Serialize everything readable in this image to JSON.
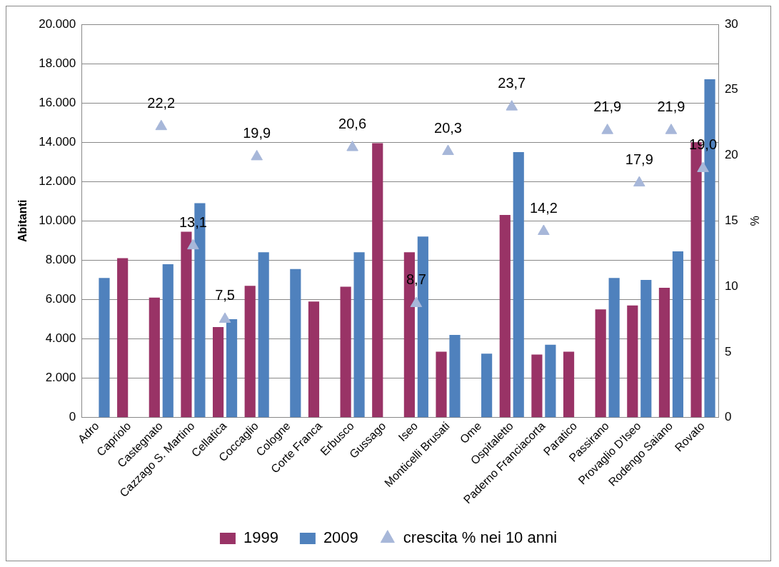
{
  "chart_data": {
    "type": "bar",
    "ylabel": "Abitanti",
    "y2label": "%",
    "categories": [
      "Adro",
      "Capriolo",
      "Castegnato",
      "Cazzago S. Martino",
      "Cellatica",
      "Coccaglio",
      "Cologne",
      "Corte Franca",
      "Erbusco",
      "Gussago",
      "Iseo",
      "Monticelli Brusati",
      "Ome",
      "Ospitaletto",
      "Paderno Franciacorta",
      "Paratico",
      "Passirano",
      "Provaglio D'Iseo",
      "Rodengo Saiano",
      "Rovato"
    ],
    "series": [
      {
        "name": "1999",
        "color": "#993366",
        "values": [
          null,
          8100,
          6100,
          9450,
          4600,
          6700,
          null,
          5900,
          6650,
          13950,
          8400,
          3350,
          null,
          10300,
          3200,
          3350,
          5500,
          5700,
          6600,
          14000
        ]
      },
      {
        "name": "2009",
        "color": "#4f81bd",
        "values": [
          7100,
          null,
          7800,
          10900,
          5000,
          8400,
          7550,
          null,
          8400,
          null,
          9200,
          4200,
          3250,
          13500,
          3700,
          null,
          7100,
          7000,
          8450,
          17200
        ]
      },
      {
        "name": "crescita % nei 10 anni",
        "type": "scatter",
        "axis": "y2",
        "marker": "triangle",
        "color": "#a7b7d9",
        "values": [
          null,
          null,
          22.2,
          13.1,
          7.5,
          19.9,
          null,
          null,
          20.6,
          null,
          8.7,
          20.3,
          null,
          23.7,
          14.2,
          null,
          21.9,
          17.9,
          21.9,
          19.0
        ],
        "value_labels": [
          null,
          null,
          "22,2",
          "13,1",
          "7,5",
          "19,9",
          null,
          null,
          "20,6",
          null,
          "8,7",
          "20,3",
          null,
          "23,7",
          "14,2",
          null,
          "21,9",
          "17,9",
          "21,9",
          "19,0"
        ]
      }
    ],
    "ylim": [
      0,
      20000
    ],
    "yticks": [
      {
        "value": 0,
        "label": "0"
      },
      {
        "value": 2000,
        "label": "2.000"
      },
      {
        "value": 4000,
        "label": "4.000"
      },
      {
        "value": 6000,
        "label": "6.000"
      },
      {
        "value": 8000,
        "label": "8.000"
      },
      {
        "value": 10000,
        "label": "10.000"
      },
      {
        "value": 12000,
        "label": "12.000"
      },
      {
        "value": 14000,
        "label": "14.000"
      },
      {
        "value": 16000,
        "label": "16.000"
      },
      {
        "value": 18000,
        "label": "18.000"
      },
      {
        "value": 20000,
        "label": "20.000"
      }
    ],
    "y2lim": [
      0,
      30
    ],
    "y2ticks": [
      0,
      5,
      10,
      15,
      20,
      25,
      30
    ],
    "grid": "y",
    "legend": "bottom"
  }
}
